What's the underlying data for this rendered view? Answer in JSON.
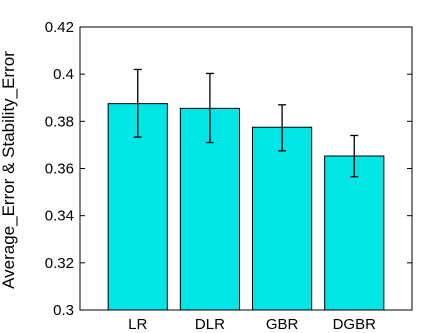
{
  "chart_data": {
    "type": "bar",
    "title": "",
    "xlabel": "",
    "ylabel": "Average_Error & Stability_Error",
    "categories": [
      "LR",
      "DLR",
      "GBR",
      "DGBR"
    ],
    "values": [
      0.3875,
      0.3855,
      0.3775,
      0.3653
    ],
    "error_low": [
      0.3733,
      0.371,
      0.3675,
      0.3565
    ],
    "error_high": [
      0.402,
      0.4003,
      0.387,
      0.374
    ],
    "ylim": [
      0.3,
      0.42
    ],
    "yticks": [
      0.3,
      0.32,
      0.34,
      0.36,
      0.38,
      0.4,
      0.42
    ],
    "ytick_labels": [
      "0.3",
      "0.32",
      "0.34",
      "0.36",
      "0.38",
      "0.4",
      "0.42"
    ],
    "grid": false,
    "colors": {
      "bar_fill": "#00e5e5",
      "bar_edge": "#000000",
      "error_bar": "#000000",
      "axis": "#000000"
    }
  }
}
